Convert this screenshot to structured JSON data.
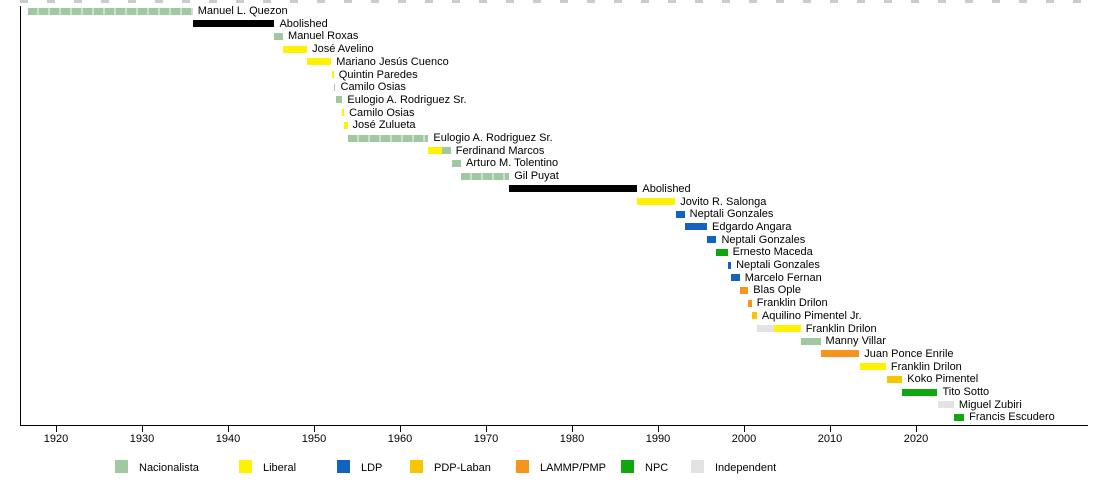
{
  "chart_data": {
    "type": "timeline",
    "title": "",
    "x_axis": {
      "ticks": [
        1920,
        1930,
        1940,
        1950,
        1960,
        1970,
        1980,
        1990,
        2000,
        2010,
        2020
      ],
      "range": [
        1915.5,
        2026.5
      ],
      "grid": false
    },
    "legend_position": "bottom",
    "parties": {
      "nacionalista": {
        "label": "Nacionalista",
        "color": "#A1C9A1",
        "stripe": "#C8E1C8"
      },
      "liberal": {
        "label": "Liberal",
        "color": "#FFF200",
        "stripe": "#FFF200"
      },
      "ldp": {
        "label": "LDP",
        "color": "#1263C0",
        "stripe": "#1263C0"
      },
      "pdp": {
        "label": "PDP-Laban",
        "color": "#F8C500",
        "stripe": "#F8C500"
      },
      "lammp": {
        "label": "LAMMP/PMP",
        "color": "#F7941E",
        "stripe": "#F7941E"
      },
      "npc": {
        "label": "NPC",
        "color": "#0EA80E",
        "stripe": "#0EA80E"
      },
      "independent": {
        "label": "Independent",
        "color": "#E3E3E3",
        "stripe": "#E3E3E3"
      },
      "abolished": {
        "label": "Abolished",
        "color": "#000000",
        "stripe": "#000000"
      }
    },
    "legend": [
      "nacionalista",
      "liberal",
      "ldp",
      "pdp",
      "lammp",
      "npc",
      "independent"
    ],
    "rows": [
      {
        "name": "Manuel L. Quezon",
        "striped": true,
        "segments": [
          {
            "party": "nacionalista",
            "start": 1916.8,
            "end": 1935.9
          }
        ]
      },
      {
        "name": "Abolished",
        "striped": false,
        "segments": [
          {
            "party": "abolished",
            "start": 1935.9,
            "end": 1945.4
          }
        ]
      },
      {
        "name": "Manuel Roxas",
        "striped": false,
        "segments": [
          {
            "party": "nacionalista",
            "start": 1945.4,
            "end": 1946.4
          }
        ]
      },
      {
        "name": "José Avelino",
        "striped": false,
        "segments": [
          {
            "party": "liberal",
            "start": 1946.4,
            "end": 1949.2
          }
        ]
      },
      {
        "name": "Mariano Jesús Cuenco",
        "striped": false,
        "segments": [
          {
            "party": "liberal",
            "start": 1949.2,
            "end": 1952.0
          }
        ]
      },
      {
        "name": "Quintin Paredes",
        "striped": false,
        "segments": [
          {
            "party": "liberal",
            "start": 1952.1,
            "end": 1952.3
          }
        ]
      },
      {
        "name": "Camilo Osias",
        "striped": false,
        "segments": [
          {
            "party": "nacionalista",
            "start": 1952.3,
            "end": 1952.5
          }
        ]
      },
      {
        "name": "Eulogio A. Rodriguez Sr.",
        "striped": false,
        "segments": [
          {
            "party": "nacionalista",
            "start": 1952.5,
            "end": 1953.3
          }
        ]
      },
      {
        "name": "Camilo Osias",
        "striped": false,
        "segments": [
          {
            "party": "liberal",
            "start": 1953.3,
            "end": 1953.5
          }
        ]
      },
      {
        "name": "José Zulueta",
        "striped": false,
        "segments": [
          {
            "party": "liberal",
            "start": 1953.5,
            "end": 1953.9
          }
        ]
      },
      {
        "name": "Eulogio A. Rodriguez Sr.",
        "striped": true,
        "segments": [
          {
            "party": "nacionalista",
            "start": 1953.9,
            "end": 1963.3
          }
        ]
      },
      {
        "name": "Ferdinand Marcos",
        "striped": false,
        "segments": [
          {
            "party": "liberal",
            "start": 1963.3,
            "end": 1964.9
          },
          {
            "party": "nacionalista",
            "start": 1964.9,
            "end": 1965.9
          }
        ]
      },
      {
        "name": "Arturo M. Tolentino",
        "striped": false,
        "segments": [
          {
            "party": "nacionalista",
            "start": 1966.0,
            "end": 1967.1
          }
        ]
      },
      {
        "name": "Gil Puyat",
        "striped": true,
        "segments": [
          {
            "party": "nacionalista",
            "start": 1967.1,
            "end": 1972.7
          }
        ]
      },
      {
        "name": "Abolished",
        "striped": false,
        "segments": [
          {
            "party": "abolished",
            "start": 1972.7,
            "end": 1987.6
          }
        ]
      },
      {
        "name": "Jovito R. Salonga",
        "striped": false,
        "segments": [
          {
            "party": "liberal",
            "start": 1987.6,
            "end": 1992.0
          }
        ]
      },
      {
        "name": "Neptali Gonzales",
        "striped": false,
        "segments": [
          {
            "party": "ldp",
            "start": 1992.1,
            "end": 1993.1
          }
        ]
      },
      {
        "name": "Edgardo Angara",
        "striped": false,
        "segments": [
          {
            "party": "ldp",
            "start": 1993.1,
            "end": 1995.7
          }
        ]
      },
      {
        "name": "Neptali Gonzales",
        "striped": false,
        "segments": [
          {
            "party": "ldp",
            "start": 1995.7,
            "end": 1996.8
          }
        ]
      },
      {
        "name": "Ernesto Maceda",
        "striped": false,
        "segments": [
          {
            "party": "npc",
            "start": 1996.8,
            "end": 1998.1
          }
        ]
      },
      {
        "name": "Neptali Gonzales",
        "striped": false,
        "segments": [
          {
            "party": "ldp",
            "start": 1998.1,
            "end": 1998.5
          }
        ]
      },
      {
        "name": "Marcelo Fernan",
        "striped": false,
        "segments": [
          {
            "party": "ldp",
            "start": 1998.5,
            "end": 1999.5
          }
        ]
      },
      {
        "name": "Blas Ople",
        "striped": false,
        "segments": [
          {
            "party": "lammp",
            "start": 1999.5,
            "end": 2000.5
          }
        ]
      },
      {
        "name": "Franklin Drilon",
        "striped": false,
        "segments": [
          {
            "party": "lammp",
            "start": 2000.5,
            "end": 2000.9
          }
        ]
      },
      {
        "name": "Aquilino Pimentel Jr.",
        "striped": false,
        "segments": [
          {
            "party": "pdp",
            "start": 2000.9,
            "end": 2001.5
          }
        ]
      },
      {
        "name": "Franklin Drilon",
        "striped": false,
        "segments": [
          {
            "party": "independent",
            "start": 2001.5,
            "end": 2003.5
          },
          {
            "party": "liberal",
            "start": 2003.5,
            "end": 2006.6
          }
        ]
      },
      {
        "name": "Manny Villar",
        "striped": false,
        "segments": [
          {
            "party": "nacionalista",
            "start": 2006.6,
            "end": 2008.9
          }
        ]
      },
      {
        "name": "Juan Ponce Enrile",
        "striped": false,
        "segments": [
          {
            "party": "lammp",
            "start": 2008.9,
            "end": 2013.4
          }
        ]
      },
      {
        "name": "Franklin Drilon",
        "striped": false,
        "segments": [
          {
            "party": "liberal",
            "start": 2013.5,
            "end": 2016.5
          }
        ]
      },
      {
        "name": "Koko Pimentel",
        "striped": false,
        "segments": [
          {
            "party": "pdp",
            "start": 2016.6,
            "end": 2018.4
          }
        ]
      },
      {
        "name": "Tito Sotto",
        "striped": false,
        "segments": [
          {
            "party": "npc",
            "start": 2018.4,
            "end": 2022.5
          }
        ]
      },
      {
        "name": "Miguel Zubiri",
        "striped": false,
        "segments": [
          {
            "party": "independent",
            "start": 2022.6,
            "end": 2024.4
          }
        ]
      },
      {
        "name": "Francis Escudero",
        "striped": false,
        "segments": [
          {
            "party": "npc",
            "start": 2024.4,
            "end": 2025.6
          }
        ]
      }
    ]
  }
}
